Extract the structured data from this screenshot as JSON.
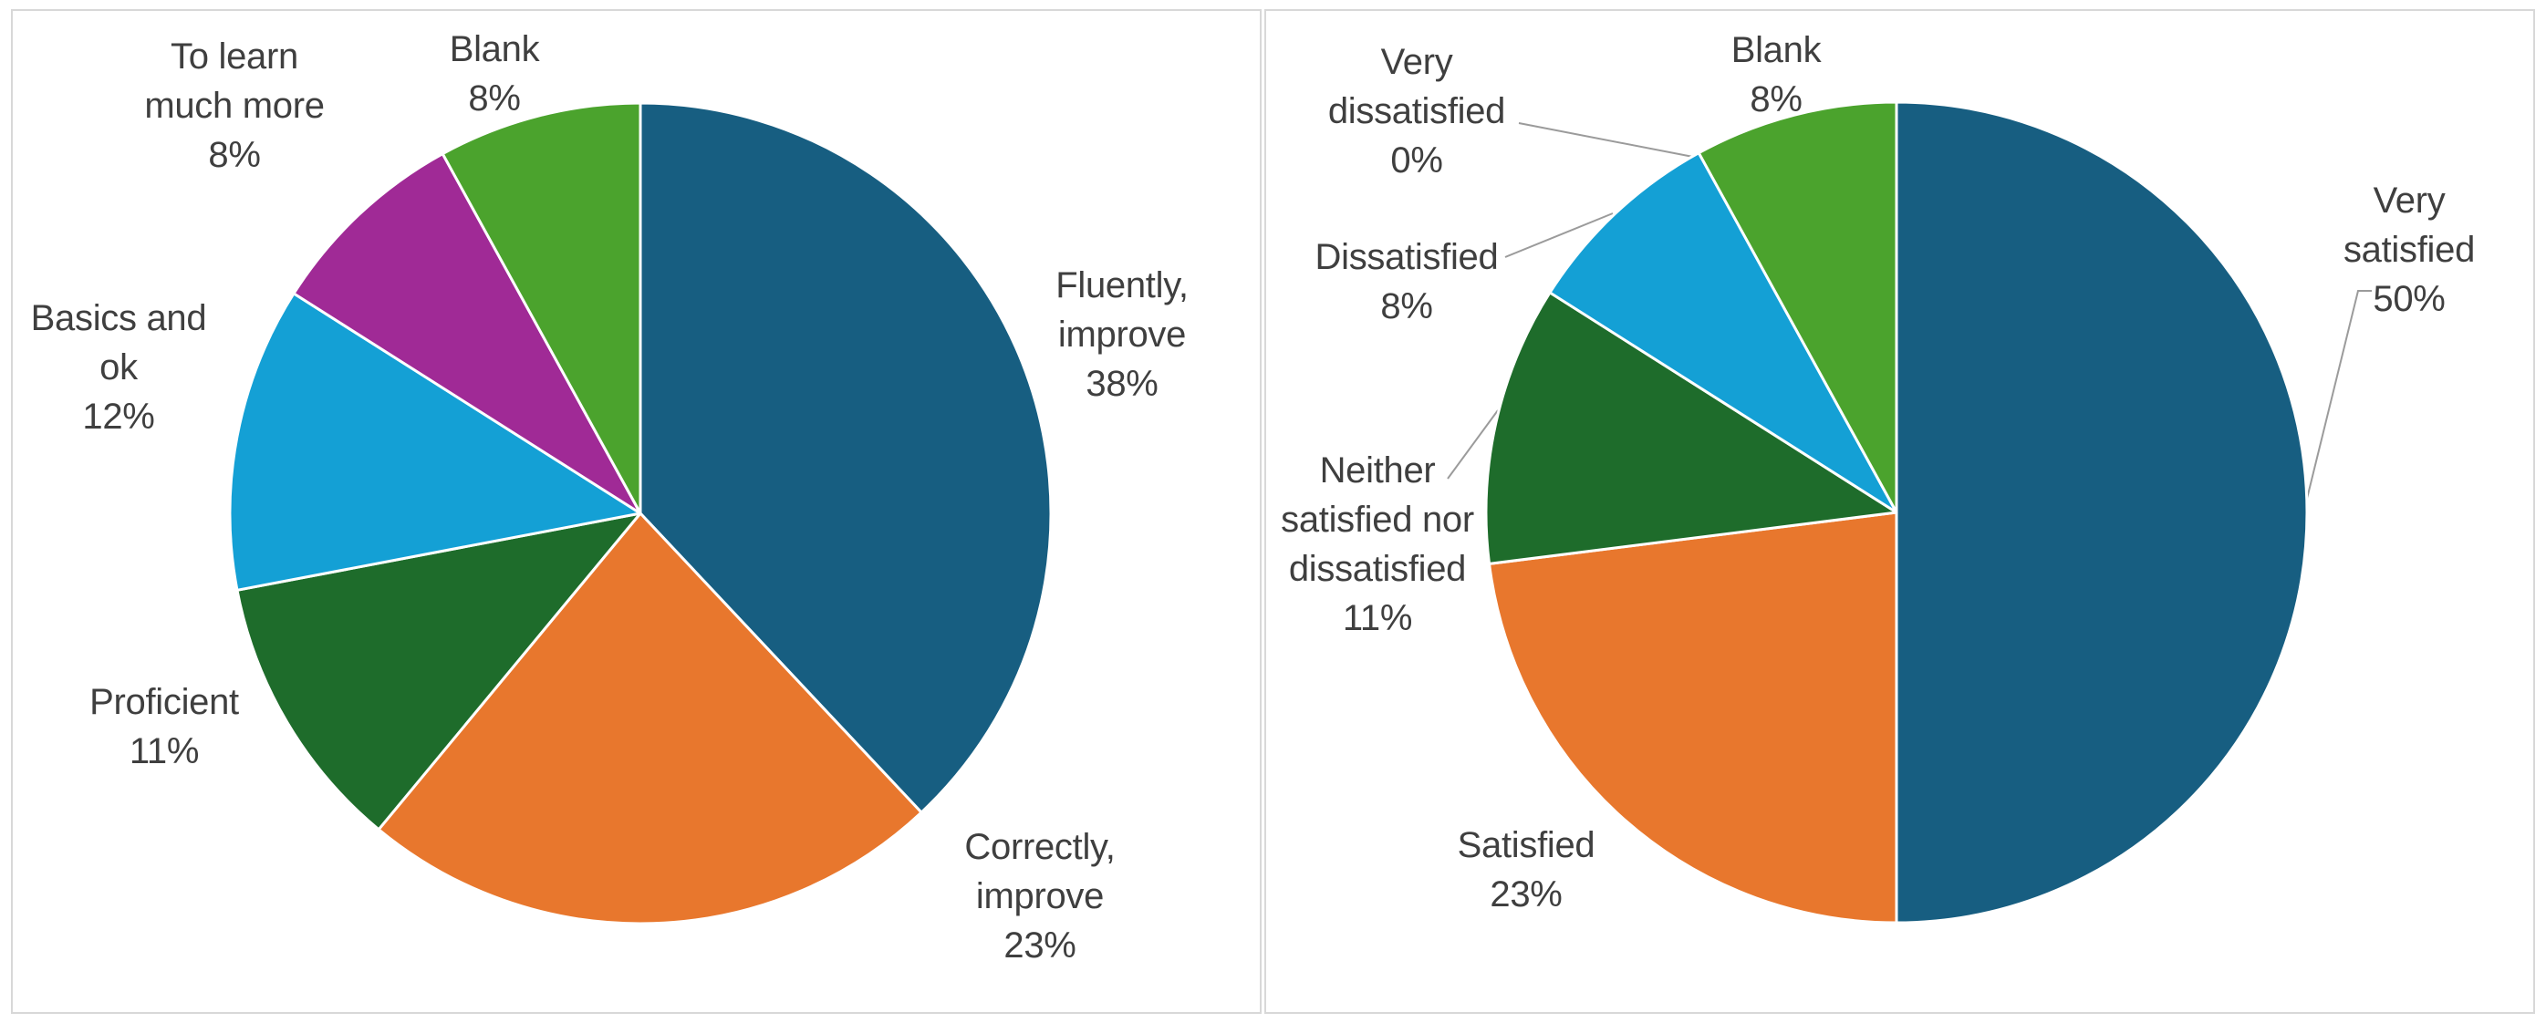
{
  "page": {
    "description": "Two side-by-side pie charts on white panels with light gray borders",
    "background_color": "#ffffff",
    "panel_border_color": "#d8d8d8",
    "label_text_color": "#3f3f3f",
    "leader_line_color": "#9b9b9b",
    "slice_separator_color": "#ffffff"
  },
  "chart_data": [
    {
      "type": "pie",
      "id": "left-pie",
      "title": "",
      "categories": [
        "Fluently, improve",
        "Correctly, improve",
        "Proficient",
        "Basics and ok",
        "To learn much more",
        "Blank"
      ],
      "values": [
        38,
        23,
        11,
        12,
        8,
        8
      ],
      "unit": "%",
      "colors": [
        "#175E81",
        "#E8772D",
        "#1E6C2B",
        "#14A0D5",
        "#A02A96",
        "#4BA32D"
      ],
      "labels": [
        [
          "Fluently,",
          "improve",
          "38%"
        ],
        [
          "Correctly,",
          "improve",
          "23%"
        ],
        [
          "Proficient",
          "11%"
        ],
        [
          "Basics and",
          "ok",
          "12%"
        ],
        [
          "To learn",
          "much more",
          "8%"
        ],
        [
          "Blank",
          "8%"
        ]
      ],
      "start_angle_deg": 0,
      "direction": "clockwise",
      "legend_position": "none",
      "data_labels": "outside-end, category name + percentage"
    },
    {
      "type": "pie",
      "id": "right-pie",
      "title": "",
      "categories": [
        "Very satisfied",
        "Satisfied",
        "Neither satisfied nor dissatisfied",
        "Dissatisfied",
        "Very dissatisfied",
        "Blank"
      ],
      "values": [
        50,
        23,
        11,
        8,
        0,
        8
      ],
      "unit": "%",
      "colors": [
        "#175E81",
        "#E8772D",
        "#1E6C2B",
        "#14A0D5",
        "#A02A96",
        "#4BA32D"
      ],
      "labels": [
        [
          "Very satisfied",
          "50%"
        ],
        [
          "Satisfied",
          "23%"
        ],
        [
          "Neither",
          "satisfied nor",
          "dissatisfied",
          "11%"
        ],
        [
          "Dissatisfied",
          "8%"
        ],
        [
          "Very",
          "dissatisfied",
          "0%"
        ],
        [
          "Blank",
          "8%"
        ]
      ],
      "start_angle_deg": 0,
      "direction": "clockwise",
      "legend_position": "none",
      "data_labels": "outside-end with gray leader lines, category name + percentage"
    }
  ]
}
